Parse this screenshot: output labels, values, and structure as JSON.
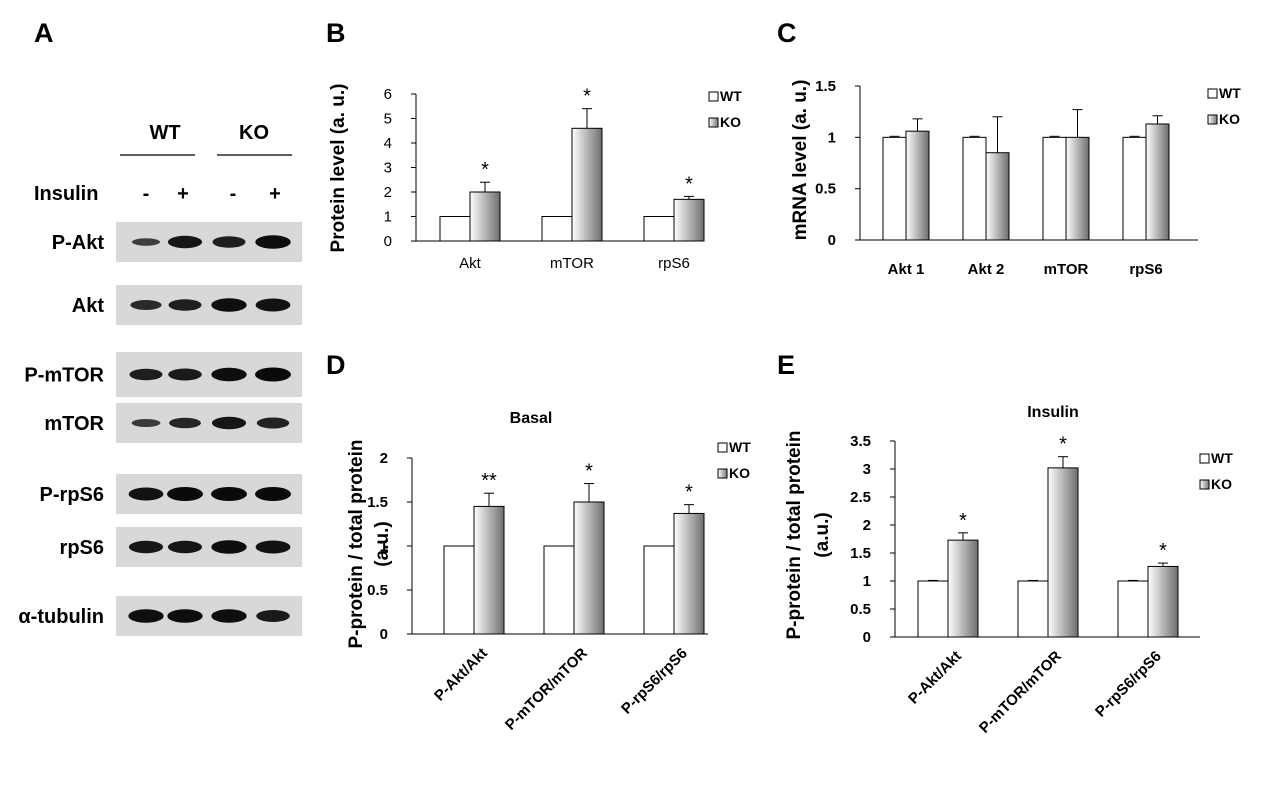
{
  "panel_a": {
    "letter": "A",
    "groups": [
      "WT",
      "KO"
    ],
    "treatment_label": "Insulin",
    "treatment_marks": [
      "-",
      "+",
      "-",
      "+"
    ],
    "blots": [
      {
        "label": "P-Akt",
        "intensity": [
          0.35,
          0.85,
          0.75,
          0.95
        ]
      },
      {
        "label": "Akt",
        "intensity": [
          0.6,
          0.75,
          0.95,
          0.9
        ]
      },
      {
        "label": "P-mTOR",
        "intensity": [
          0.75,
          0.8,
          0.95,
          1.0
        ]
      },
      {
        "label": "mTOR",
        "intensity": [
          0.4,
          0.65,
          0.85,
          0.7
        ]
      },
      {
        "label": "P-rpS6",
        "intensity": [
          0.9,
          1.0,
          1.0,
          1.0
        ]
      },
      {
        "label": "rpS6",
        "intensity": [
          0.85,
          0.85,
          0.95,
          0.9
        ]
      },
      {
        "label": "α-tubulin",
        "intensity": [
          0.95,
          0.95,
          0.95,
          0.8
        ]
      }
    ]
  },
  "chart_data": [
    {
      "letter": "B",
      "type": "bar",
      "title": "",
      "categories": [
        "Akt",
        "mTOR",
        "rpS6"
      ],
      "series": [
        {
          "name": "WT",
          "values": [
            1,
            1,
            1
          ],
          "errors": [
            0,
            0,
            0
          ]
        },
        {
          "name": "KO",
          "values": [
            2,
            4.6,
            1.7
          ],
          "errors": [
            0.4,
            0.8,
            0.12
          ]
        }
      ],
      "significance": [
        "*",
        "*",
        "*"
      ],
      "ylabel": "Protein level (a. u.)",
      "xlabel": "",
      "ylim": [
        0,
        6
      ],
      "yticks": [
        "0",
        "1",
        "2",
        "3",
        "4",
        "5",
        "6"
      ],
      "legend": "top-right",
      "grid": false
    },
    {
      "letter": "C",
      "type": "bar",
      "title": "",
      "categories": [
        "Akt 1",
        "Akt 2",
        "mTOR",
        "rpS6"
      ],
      "series": [
        {
          "name": "WT",
          "values": [
            1,
            1,
            1,
            1
          ],
          "errors": [
            0.01,
            0.01,
            0.01,
            0.01
          ]
        },
        {
          "name": "KO",
          "values": [
            1.06,
            0.85,
            1.0,
            1.13
          ],
          "errors": [
            0.12,
            0.35,
            0.27,
            0.08
          ]
        }
      ],
      "significance": [
        "",
        "",
        "",
        ""
      ],
      "ylabel": "mRNA level (a. u.)",
      "xlabel": "",
      "ylim": [
        0,
        1.5
      ],
      "yticks": [
        "0",
        "0.5",
        "1",
        "1.5"
      ],
      "legend": "top-right",
      "grid": false
    },
    {
      "letter": "D",
      "type": "bar",
      "title": "Basal",
      "categories": [
        "P-Akt/Akt",
        "P-mTOR/mTOR",
        "P-rpS6/rpS6"
      ],
      "series": [
        {
          "name": "WT",
          "values": [
            1,
            1,
            1
          ],
          "errors": [
            0,
            0,
            0
          ]
        },
        {
          "name": "KO",
          "values": [
            1.45,
            1.5,
            1.37
          ],
          "errors": [
            0.15,
            0.21,
            0.1
          ]
        }
      ],
      "significance": [
        "**",
        "*",
        "*"
      ],
      "ylabel": "P-protein / total protein (a.u.)",
      "xlabel": "",
      "ylim": [
        0,
        2
      ],
      "yticks": [
        "0",
        "0.5",
        "1",
        "1.5",
        "2"
      ],
      "legend": "top-right",
      "grid": false
    },
    {
      "letter": "E",
      "type": "bar",
      "title": "Insulin",
      "categories": [
        "P-Akt/Akt",
        "P-mTOR/mTOR",
        "P-rpS6/rpS6"
      ],
      "series": [
        {
          "name": "WT",
          "values": [
            1,
            1,
            1
          ],
          "errors": [
            0.01,
            0.01,
            0.01
          ]
        },
        {
          "name": "KO",
          "values": [
            1.73,
            3.02,
            1.26
          ],
          "errors": [
            0.13,
            0.2,
            0.06
          ]
        }
      ],
      "significance": [
        "*",
        "*",
        "*"
      ],
      "ylabel": "P-protein / total protein (a.u.)",
      "xlabel": "",
      "ylim": [
        0,
        3.5
      ],
      "yticks": [
        "0",
        "0.5",
        "1",
        "1.5",
        "2",
        "2.5",
        "3",
        "3.5"
      ],
      "legend": "top-right",
      "grid": false
    }
  ],
  "colors": {
    "wt_fill": "#ffffff",
    "ko_light": "#ffffff",
    "ko_dark": "#6e6e6e",
    "stroke": "#000000"
  }
}
